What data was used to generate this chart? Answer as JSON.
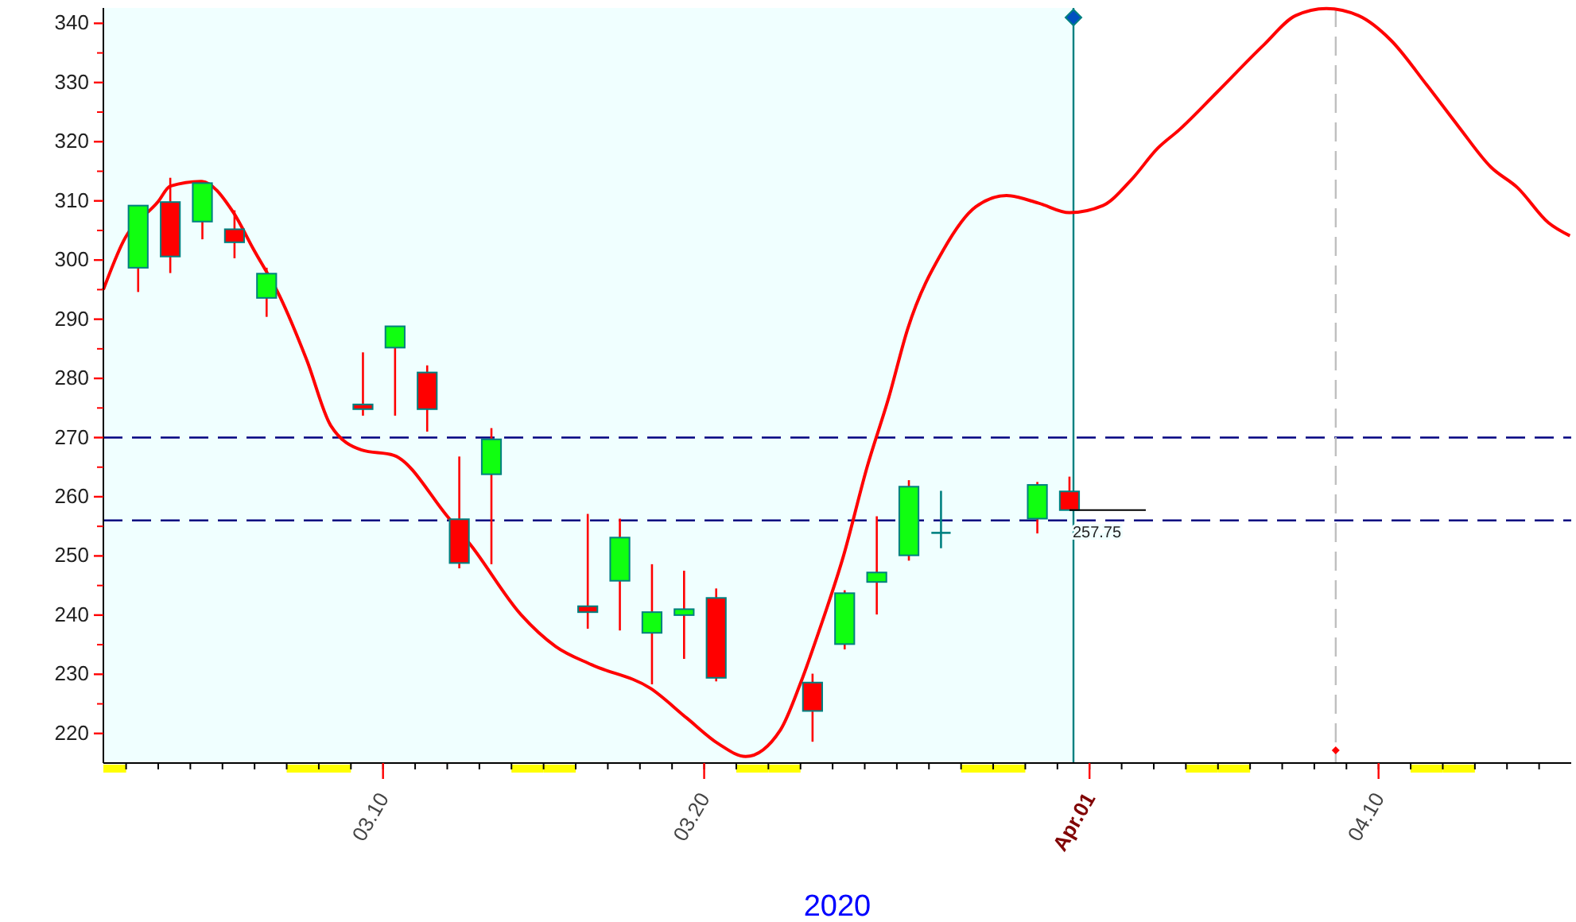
{
  "chart_data": {
    "type": "candlestick",
    "xlabel": "2020",
    "xlim": [
      "2020-03-01T07:00",
      "2020-04-16"
    ],
    "ylim": [
      215,
      342.6
    ],
    "xticks": [
      {
        "value": "2020-03-10",
        "label": "03.10"
      },
      {
        "value": "2020-03-20",
        "label": "03.20"
      },
      {
        "value": "2020-04-01",
        "label": "Apr.01"
      },
      {
        "value": "2020-04-10",
        "label": "04.10"
      }
    ],
    "yticks": [
      220,
      230,
      240,
      250,
      260,
      270,
      280,
      290,
      300,
      310,
      320,
      330,
      340
    ],
    "grid": false,
    "legend": false,
    "series": [
      {
        "x": [
          "2020-03-02T09:00",
          "2020-03-03T09:00",
          "2020-03-04T09:00",
          "2020-03-05T09:00",
          "2020-03-06T09:00",
          "2020-03-09T09:00",
          "2020-03-10T09:00",
          "2020-03-11T09:00",
          "2020-03-12T09:00",
          "2020-03-13T09:00",
          "2020-03-16T09:00",
          "2020-03-17T09:00",
          "2020-03-18T09:00",
          "2020-03-19T09:00",
          "2020-03-20T09:00",
          "2020-03-23T09:00",
          "2020-03-24T09:00",
          "2020-03-25T09:00",
          "2020-03-26T09:00",
          "2020-03-27T09:00",
          "2020-03-30T09:00",
          "2020-03-31T09:00"
        ],
        "ohlc": [
          [
            298.7,
            309.2,
            294.6,
            309.2
          ],
          [
            309.8,
            313.9,
            297.8,
            300.6
          ],
          [
            306.5,
            313,
            303.5,
            313
          ],
          [
            305.2,
            308.4,
            300.3,
            303
          ],
          [
            293.6,
            298.7,
            290.4,
            297.7
          ],
          [
            275.6,
            284.4,
            273.7,
            274.8
          ],
          [
            285.2,
            288.8,
            273.7,
            288.8
          ],
          [
            281,
            282.2,
            271,
            274.8
          ],
          [
            256.2,
            266.8,
            247.9,
            248.8
          ],
          [
            263.8,
            271.6,
            248.6,
            269.7
          ],
          [
            241.5,
            257.1,
            237.7,
            240.5
          ],
          [
            245.8,
            256.3,
            237.4,
            253.1
          ],
          [
            237,
            248.6,
            228.3,
            240.5
          ],
          [
            240,
            247.5,
            232.6,
            241
          ],
          [
            242.9,
            244.5,
            228.8,
            229.4
          ],
          [
            228.6,
            230.1,
            218.6,
            223.8
          ],
          [
            235.1,
            244.2,
            234.2,
            243.7
          ],
          [
            245.6,
            256.7,
            240.1,
            247.2
          ],
          [
            250.1,
            262.8,
            249.2,
            261.7
          ],
          [
            253.9,
            261,
            251.3,
            253.9
          ],
          [
            256.3,
            262.5,
            253.8,
            262
          ],
          [
            260.9,
            263.4,
            257.75,
            257.75
          ]
        ],
        "colors": [
          "#10ff10",
          "#ff0000",
          "#10ff10",
          "#ff0000",
          "#10ff10",
          "#ff0000",
          "#10ff10",
          "#ff0000",
          "#ff0000",
          "#10ff10",
          "#ff0000",
          "#10ff10",
          "#10ff10",
          "#10ff10",
          "#ff0000",
          "#ff0000",
          "#10ff10",
          "#10ff10",
          "#10ff10",
          "#008080",
          "#10ff10",
          "#ff0000"
        ]
      },
      {
        "type": "line",
        "color": "#ff0000",
        "x": [
          "2020-03-01T07:00",
          "2020-03-01T22:00",
          "2020-03-03T00:00",
          "2020-03-03T09:00",
          "2020-03-04T08:00",
          "2020-03-05T08:00",
          "2020-03-05T23:00",
          "2020-03-06T19:00",
          "2020-03-07T15:00",
          "2020-03-08T09:00",
          "2020-03-09T08:00",
          "2020-03-10T08:00",
          "2020-03-12T00:00",
          "2020-03-12T18:00",
          "2020-03-14T07:00",
          "2020-03-15T09:00",
          "2020-03-16T12:00",
          "2020-03-18T08:00",
          "2020-03-19T11:00",
          "2020-03-20T11:00",
          "2020-03-21T07:00",
          "2020-03-22T09:00",
          "2020-03-23T00:00",
          "2020-03-23T14:00",
          "2020-03-24T08:00",
          "2020-03-25T02:00",
          "2020-03-25T18:00",
          "2020-03-26T08:00",
          "2020-03-27T11:00",
          "2020-03-28T11:00",
          "2020-03-29T10:00",
          "2020-03-30T10:00",
          "2020-03-31T09:00",
          "2020-04-01T10:00",
          "2020-04-02T07:00",
          "2020-04-03T03:00",
          "2020-04-03T19:00",
          "2020-04-04T23:00",
          "2020-04-06T10:00",
          "2020-04-07T10:00",
          "2020-04-08T09:00",
          "2020-04-09T09:00",
          "2020-04-10T09:00",
          "2020-04-11T12:00",
          "2020-04-12T12:00",
          "2020-04-13T12:00",
          "2020-04-14T08:00",
          "2020-04-15T07:00",
          "2020-04-15T23:00"
        ],
        "values": [
          295,
          303.2,
          309.9,
          312.5,
          313.3,
          308.1,
          301.9,
          293.8,
          283.1,
          272,
          267.9,
          267,
          256.7,
          251.7,
          240.1,
          234.7,
          231.6,
          227.6,
          222.6,
          218.2,
          216.1,
          220.6,
          228.5,
          237.4,
          249.9,
          265.2,
          276.8,
          288.3,
          301.8,
          309,
          310.9,
          309.6,
          308,
          309.2,
          313.5,
          318.9,
          322,
          328.3,
          336.3,
          341.3,
          342.5,
          341.3,
          337.2,
          329.6,
          322.5,
          315.7,
          312.2,
          306.3,
          304.1
        ]
      }
    ],
    "ref_lines": [
      {
        "axis": "y",
        "value": 270,
        "color": "#000080",
        "line_style": "dashed"
      },
      {
        "axis": "y",
        "value": 256,
        "color": "#000080",
        "line_style": "dashed"
      },
      {
        "axis": "x",
        "value": "2020-03-31T12:00",
        "color": "#008080",
        "line_style": "solid"
      },
      {
        "axis": "x",
        "value": "2020-04-08T16:00",
        "color": "#c0c0c0",
        "line_style": "dashed"
      }
    ],
    "bands": [
      {
        "axis": "x",
        "from": "2020-03-01T07:00",
        "to": "2020-03-31T12:00",
        "color": "#f0ffff"
      }
    ],
    "annotations": [
      "257.75"
    ]
  }
}
